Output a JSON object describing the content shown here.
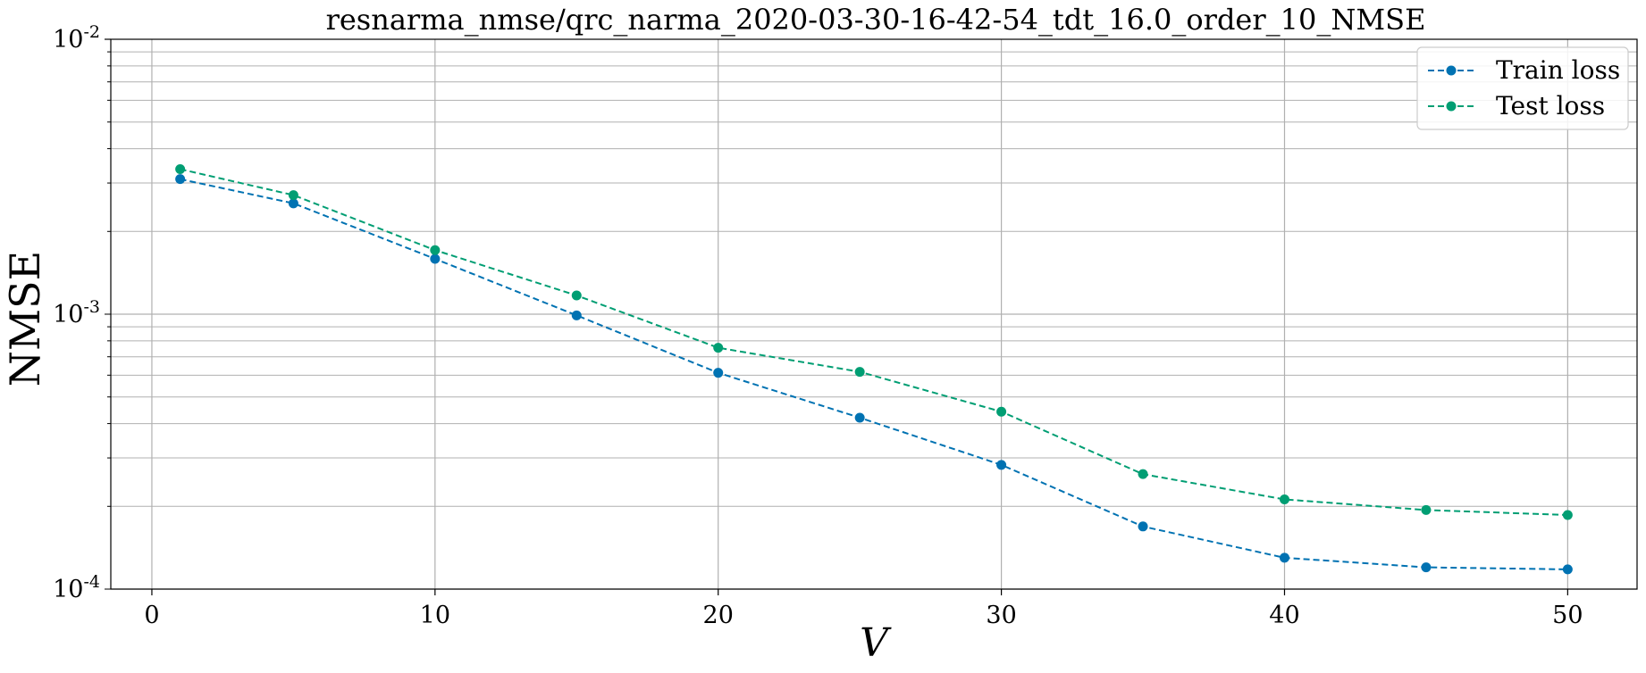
{
  "chart_data": {
    "type": "line",
    "title": "resnarma_nmse/qrc_narma_2020-03-30-16-42-54_tdt_16.0_order_10_NMSE",
    "xlabel": "V",
    "ylabel": "NMSE",
    "xscale": "linear",
    "yscale": "log",
    "xlim": [
      -1.45,
      52.45
    ],
    "ylim": [
      0.0001,
      0.01
    ],
    "grid": true,
    "legend_position": "top-right",
    "x_ticks": [
      0,
      10,
      20,
      30,
      40,
      50
    ],
    "x_tick_labels": [
      "0",
      "10",
      "20",
      "30",
      "40",
      "50"
    ],
    "y_ticks": [
      {
        "value": 0.0001,
        "base": "10",
        "exp": "-4"
      },
      {
        "value": 0.001,
        "base": "10",
        "exp": "-3"
      },
      {
        "value": 0.01,
        "base": "10",
        "exp": "-2"
      }
    ],
    "x": [
      1,
      5,
      10,
      15,
      20,
      25,
      30,
      35,
      40,
      45,
      50
    ],
    "series": [
      {
        "name": "Train loss",
        "color": "#0072b2",
        "line_style": "dashed",
        "marker": "circle",
        "values": [
          0.0031,
          0.00253,
          0.00159,
          0.00099,
          0.000612,
          0.00042,
          0.000283,
          0.000169,
          0.00013,
          0.00012,
          0.000118
        ]
      },
      {
        "name": "Test loss",
        "color": "#009e73",
        "line_style": "dashed",
        "marker": "circle",
        "values": [
          0.00337,
          0.00271,
          0.00171,
          0.00117,
          0.000755,
          0.000617,
          0.000442,
          0.000262,
          0.000212,
          0.000194,
          0.000186
        ]
      }
    ]
  }
}
